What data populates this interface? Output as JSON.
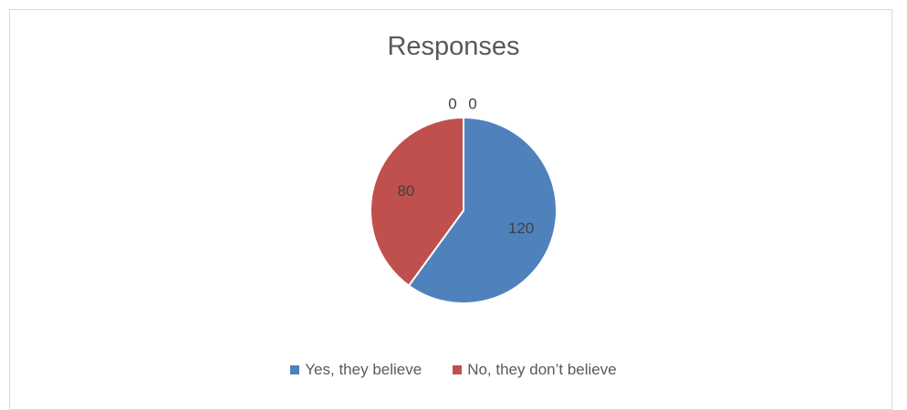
{
  "chart_data": {
    "type": "pie",
    "title": "Responses",
    "categories": [
      "Yes, they believe",
      "No, they don’t believe",
      "",
      ""
    ],
    "values": [
      120,
      80,
      0,
      0
    ],
    "data_labels": [
      "120",
      "80",
      "0",
      "0"
    ],
    "colors": [
      "#4f81bd",
      "#c0504d",
      "#9bbb59",
      "#8064a2"
    ],
    "legend_placement": "bottom",
    "legend": [
      "Yes, they believe",
      "No, they don’t believe"
    ]
  }
}
